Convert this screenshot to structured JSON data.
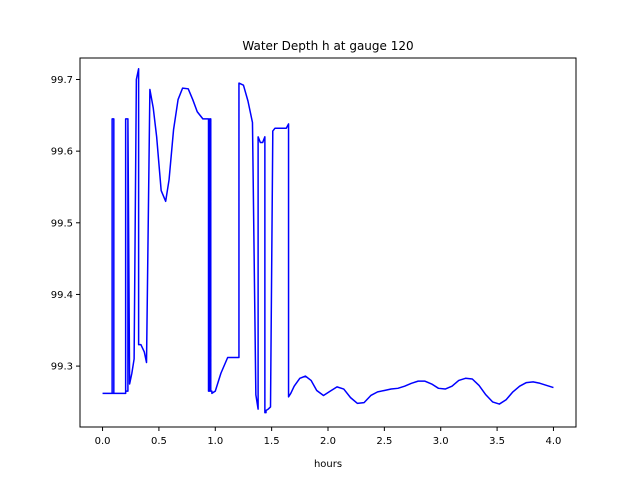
{
  "chart_data": {
    "type": "line",
    "title": "Water Depth h at gauge 120",
    "xlabel": "hours",
    "ylabel": "",
    "xlim": [
      -0.2,
      4.2
    ],
    "ylim": [
      99.215,
      99.73
    ],
    "x_ticks": [
      0.0,
      0.5,
      1.0,
      1.5,
      2.0,
      2.5,
      3.0,
      3.5,
      4.0
    ],
    "x_tick_labels": [
      "0.0",
      "0.5",
      "1.0",
      "1.5",
      "2.0",
      "2.5",
      "3.0",
      "3.5",
      "4.0"
    ],
    "y_ticks": [
      99.3,
      99.4,
      99.5,
      99.6,
      99.7
    ],
    "y_tick_labels": [
      "99.3",
      "99.4",
      "99.5",
      "99.6",
      "99.7"
    ],
    "grid": false,
    "series": [
      {
        "color": "#0000ff",
        "x": [
          0.0,
          0.085,
          0.085,
          0.1,
          0.1,
          0.085,
          0.085,
          0.1,
          0.1,
          0.205,
          0.205,
          0.225,
          0.225,
          0.205,
          0.205,
          0.225,
          0.24,
          0.26,
          0.28,
          0.3,
          0.3,
          0.32,
          0.32,
          0.34,
          0.37,
          0.39,
          0.42,
          0.42,
          0.45,
          0.48,
          0.52,
          0.56,
          0.59,
          0.63,
          0.67,
          0.71,
          0.76,
          0.8,
          0.84,
          0.89,
          0.94,
          0.94,
          0.95,
          0.95,
          0.96,
          0.96,
          0.97,
          0.97,
          1.0,
          1.05,
          1.11,
          1.16,
          1.21,
          1.21,
          1.25,
          1.29,
          1.33,
          1.36,
          1.36,
          1.38,
          1.38,
          1.4,
          1.42,
          1.44,
          1.44,
          1.45,
          1.45,
          1.47,
          1.49,
          1.51,
          1.51,
          1.53,
          1.56,
          1.6,
          1.63,
          1.65,
          1.65,
          1.67,
          1.7,
          1.75,
          1.8,
          1.85,
          1.9,
          1.96,
          2.02,
          2.08,
          2.14,
          2.2,
          2.26,
          2.32,
          2.38,
          2.44,
          2.5,
          2.56,
          2.62,
          2.68,
          2.74,
          2.8,
          2.86,
          2.92,
          2.98,
          3.04,
          3.1,
          3.16,
          3.22,
          3.28,
          3.34,
          3.4,
          3.46,
          3.52,
          3.58,
          3.64,
          3.7,
          3.76,
          3.82,
          3.88,
          3.94,
          4.0
        ],
        "y": [
          99.262,
          99.262,
          99.645,
          99.645,
          99.262,
          99.262,
          99.645,
          99.645,
          99.262,
          99.262,
          99.645,
          99.645,
          99.265,
          99.265,
          99.645,
          99.645,
          99.275,
          99.29,
          99.31,
          99.7,
          99.7,
          99.715,
          99.33,
          99.33,
          99.32,
          99.305,
          99.686,
          99.686,
          99.66,
          99.62,
          99.545,
          99.53,
          99.56,
          99.63,
          99.672,
          99.688,
          99.687,
          99.672,
          99.655,
          99.645,
          99.645,
          99.265,
          99.265,
          99.645,
          99.645,
          99.265,
          99.265,
          99.262,
          99.265,
          99.29,
          99.312,
          99.312,
          99.312,
          99.695,
          99.692,
          99.67,
          99.64,
          99.26,
          99.26,
          99.24,
          99.62,
          99.612,
          99.612,
          99.62,
          99.235,
          99.235,
          99.238,
          99.24,
          99.243,
          99.62,
          99.628,
          99.632,
          99.632,
          99.632,
          99.632,
          99.638,
          99.257,
          99.262,
          99.272,
          99.283,
          99.286,
          99.28,
          99.266,
          99.259,
          99.265,
          99.271,
          99.268,
          99.256,
          99.248,
          99.249,
          99.259,
          99.264,
          99.266,
          99.268,
          99.269,
          99.272,
          99.276,
          99.279,
          99.279,
          99.275,
          99.269,
          99.268,
          99.272,
          99.28,
          99.283,
          99.282,
          99.273,
          99.26,
          99.25,
          99.247,
          99.253,
          99.264,
          99.272,
          99.277,
          99.278,
          99.276,
          99.273,
          99.27
        ]
      }
    ]
  }
}
